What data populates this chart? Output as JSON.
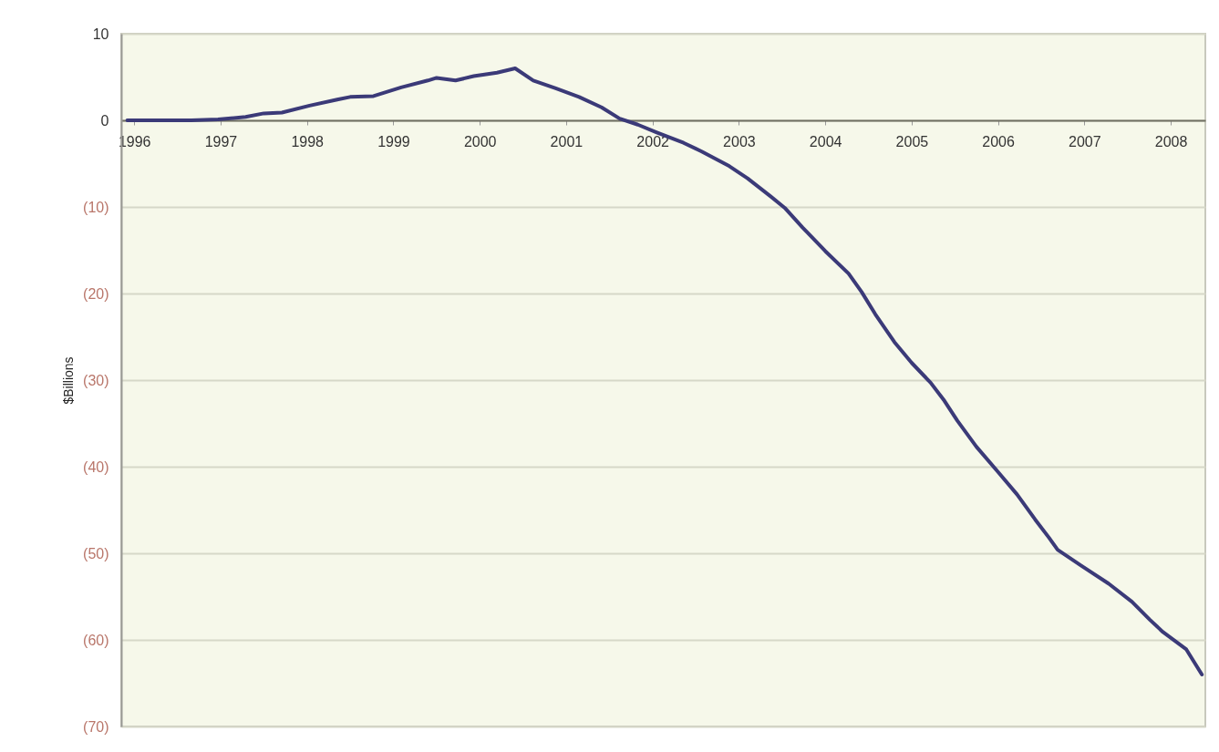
{
  "chart_data": {
    "type": "line",
    "ylabel": "$Billions",
    "x": [
      1995.92,
      1996.66,
      1996.97,
      1997.29,
      1997.5,
      1997.71,
      1998.03,
      1998.35,
      1998.5,
      1998.77,
      1999.09,
      1999.4,
      1999.5,
      1999.72,
      1999.93,
      2000.2,
      2000.41,
      2000.62,
      2000.88,
      2001.15,
      2001.41,
      2001.62,
      2001.83,
      2002.05,
      2002.36,
      2002.57,
      2002.89,
      2003.1,
      2003.37,
      2003.53,
      2003.74,
      2004.0,
      2004.27,
      2004.42,
      2004.58,
      2004.8,
      2005.0,
      2005.22,
      2005.38,
      2005.53,
      2005.75,
      2006.0,
      2006.22,
      2006.43,
      2006.59,
      2006.69,
      2006.96,
      2007.28,
      2007.55,
      2007.76,
      2007.91,
      2008.18,
      2008.36
    ],
    "series": [
      {
        "color": "#3b3a78",
        "values": [
          0,
          0,
          0.1,
          0.4,
          0.8,
          0.9,
          1.7,
          2.4,
          2.7,
          2.8,
          3.8,
          4.6,
          4.9,
          4.6,
          5.1,
          5.5,
          6.0,
          4.6,
          3.7,
          2.7,
          1.5,
          0.2,
          -0.5,
          -1.4,
          -2.6,
          -3.6,
          -5.3,
          -6.7,
          -8.8,
          -10.1,
          -12.4,
          -15.1,
          -17.7,
          -19.8,
          -22.4,
          -25.6,
          -28.0,
          -30.3,
          -32.4,
          -34.7,
          -37.7,
          -40.6,
          -43.2,
          -46.1,
          -48.2,
          -49.6,
          -51.4,
          -53.5,
          -55.6,
          -57.7,
          -59.1,
          -61.1,
          -64.0
        ]
      }
    ],
    "xlim": [
      1995.85,
      2008.4
    ],
    "xticks": [
      1996,
      1997,
      1998,
      1999,
      2000,
      2001,
      2002,
      2003,
      2004,
      2005,
      2006,
      2007,
      2008
    ],
    "ylim": [
      -70,
      10
    ],
    "yticks": [
      10,
      0,
      {
        "value": -10,
        "label": "(10)"
      },
      {
        "value": -20,
        "label": "(20)"
      },
      {
        "value": -30,
        "label": "(30)"
      },
      {
        "value": -40,
        "label": "(40)"
      },
      {
        "value": -50,
        "label": "(50)"
      },
      {
        "value": -60,
        "label": "(60)"
      },
      {
        "value": -70,
        "label": "(70)"
      }
    ],
    "grid": "y",
    "marker": "none",
    "line_style": "solid"
  }
}
